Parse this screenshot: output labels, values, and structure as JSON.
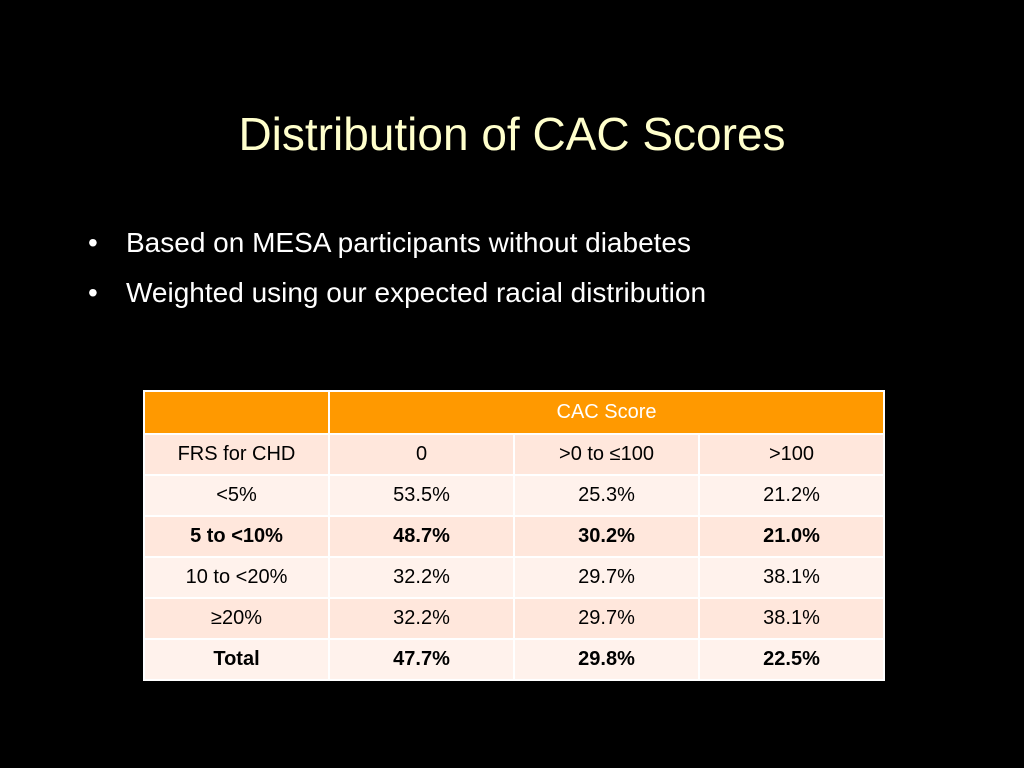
{
  "slide": {
    "title": "Distribution of CAC Scores",
    "bullets": [
      "Based on MESA participants without diabetes",
      "Weighted using our expected racial distribution"
    ]
  },
  "table": {
    "group_header": "CAC Score",
    "columns": [
      "FRS for CHD",
      "0",
      ">0 to ≤100",
      ">100"
    ],
    "rows": [
      {
        "label": "<5%",
        "values": [
          "53.5%",
          "25.3%",
          "21.2%"
        ],
        "bold": false
      },
      {
        "label": "5 to <10%",
        "values": [
          "48.7%",
          "30.2%",
          "21.0%"
        ],
        "bold": true
      },
      {
        "label": "10 to <20%",
        "values": [
          "32.2%",
          "29.7%",
          "38.1%"
        ],
        "bold": false
      },
      {
        "label": "≥20%",
        "values": [
          "32.2%",
          "29.7%",
          "38.1%"
        ],
        "bold": false
      },
      {
        "label": "Total",
        "values": [
          "47.7%",
          "29.8%",
          "22.5%"
        ],
        "bold": true
      }
    ]
  },
  "colors": {
    "background": "#000000",
    "title": "#FFFFCC",
    "bullet_text": "#FFFFFF",
    "table_header": "#FF9900",
    "table_row_dark": "#FFE7DC",
    "table_row_light": "#FFF2EC"
  }
}
